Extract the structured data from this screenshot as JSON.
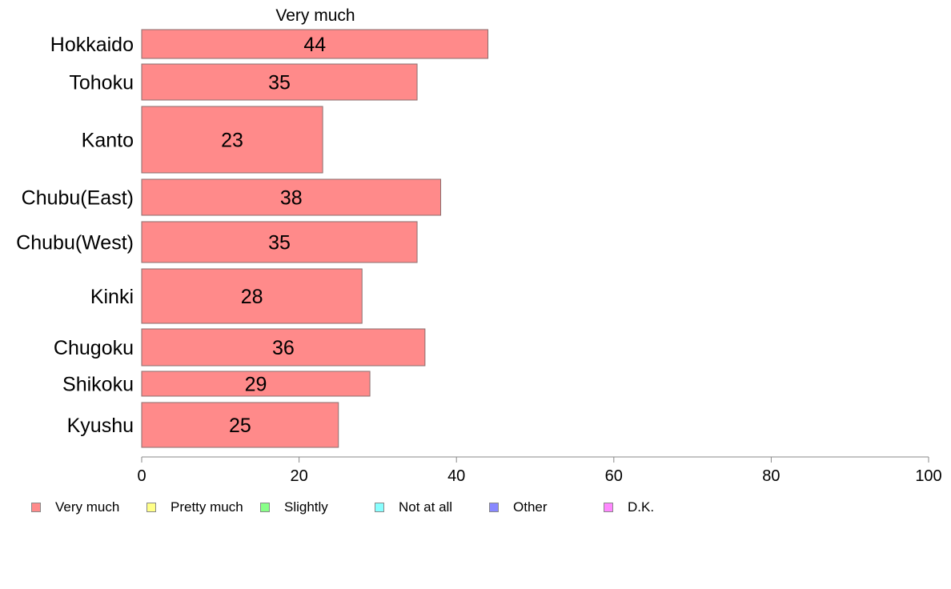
{
  "chart_data": {
    "type": "bar",
    "orientation": "horizontal",
    "title": "Very much",
    "categories": [
      "Hokkaido",
      "Tohoku",
      "Kanto",
      "Chubu(East)",
      "Chubu(West)",
      "Kinki",
      "Chugoku",
      "Shikoku",
      "Kyushu"
    ],
    "series": [
      {
        "name": "Very much",
        "values": [
          44,
          35,
          23,
          38,
          35,
          28,
          36,
          29,
          25
        ],
        "color": "#ff8a8a"
      }
    ],
    "xticks": [
      "0",
      "20",
      "40",
      "60",
      "80",
      "100"
    ],
    "xlim": [
      0,
      100
    ],
    "grid": false,
    "legend_placement": "bottom"
  },
  "legend": [
    {
      "label": "Very much",
      "color": "#ff8a8a"
    },
    {
      "label": "Pretty much",
      "color": "#ffff88"
    },
    {
      "label": "Slightly",
      "color": "#88ff88"
    },
    {
      "label": "Not at all",
      "color": "#88ffff"
    },
    {
      "label": "Other",
      "color": "#8888ff"
    },
    {
      "label": "D.K.",
      "color": "#ff88ff"
    }
  ]
}
